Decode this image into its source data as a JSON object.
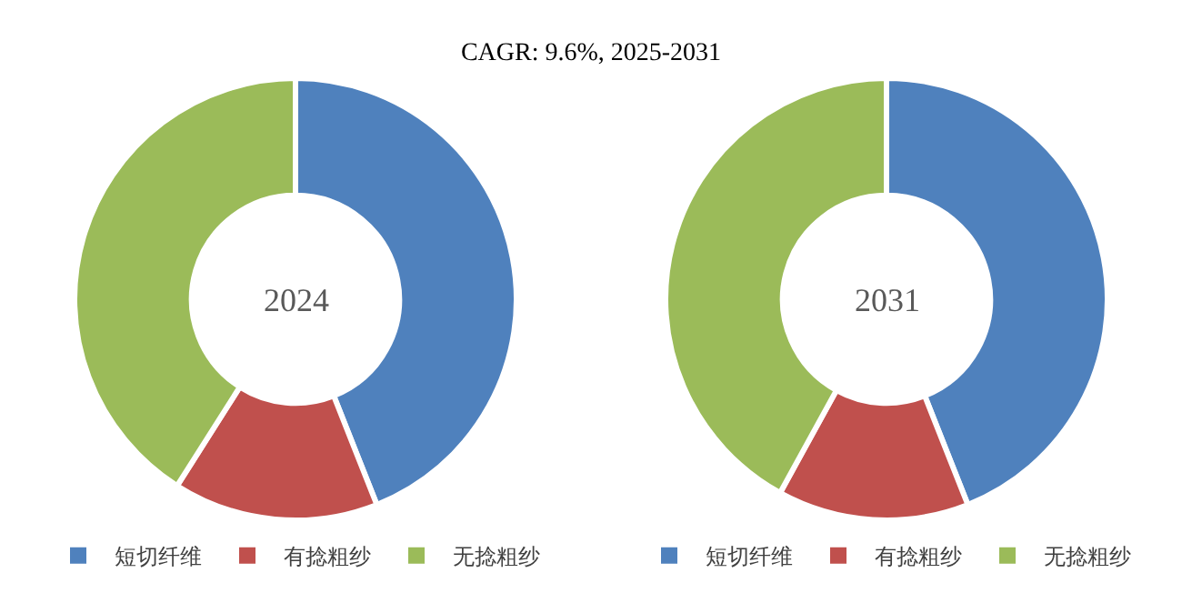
{
  "chart_data": [
    {
      "type": "donut",
      "title": "CAGR:  9.6%, 2025-2031",
      "categories": [
        "短切纤维",
        "有捻粗纱",
        "无捻粗纱"
      ],
      "values": [
        44,
        15,
        41
      ],
      "colors": [
        "#4f81bd",
        "#c0504d",
        "#9bbb59"
      ],
      "annotations": [
        "2024"
      ],
      "legend": "bottom"
    },
    {
      "type": "donut",
      "categories": [
        "短切纤维",
        "有捻粗纱",
        "无捻粗纱"
      ],
      "values": [
        44,
        14,
        42
      ],
      "colors": [
        "#4f81bd",
        "#c0504d",
        "#9bbb59"
      ],
      "annotations": [
        "2031"
      ],
      "legend": "bottom"
    }
  ]
}
